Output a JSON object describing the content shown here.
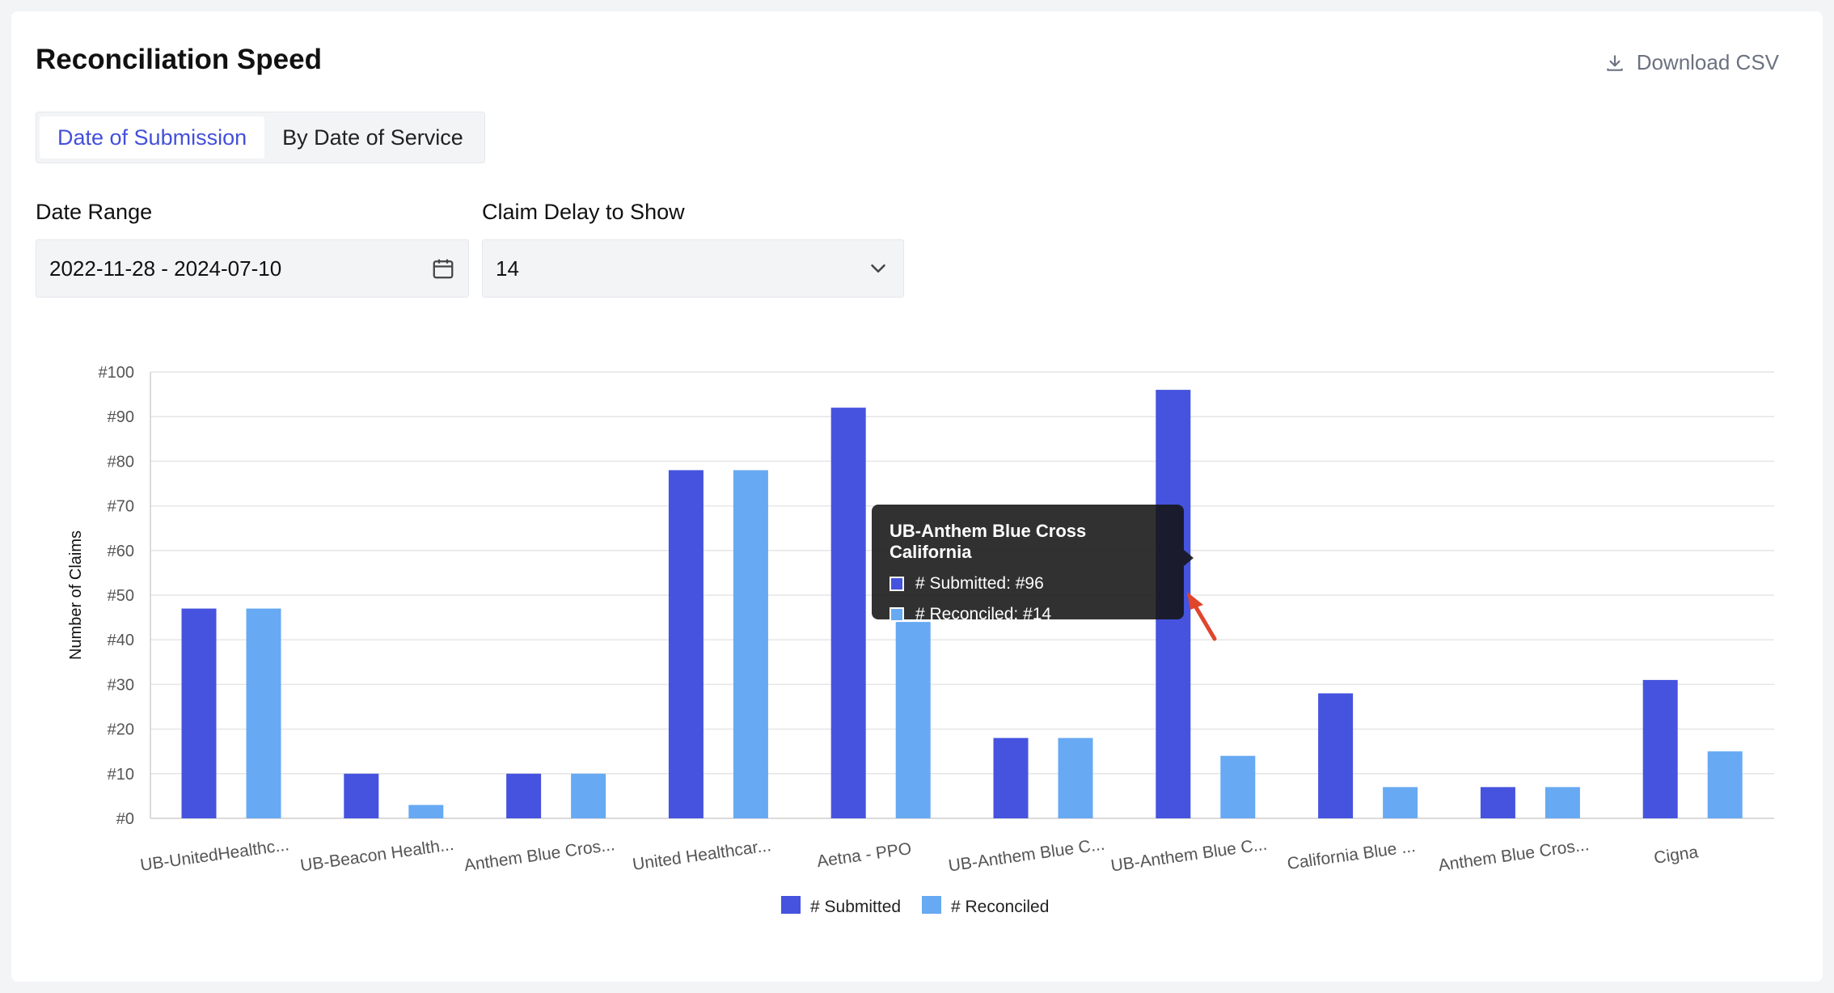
{
  "header": {
    "title": "Reconciliation Speed",
    "download_label": "Download CSV"
  },
  "tabs": [
    {
      "label": "Date of Submission",
      "active": true
    },
    {
      "label": "By Date of Service",
      "active": false
    }
  ],
  "filters": {
    "date_range_label": "Date Range",
    "date_range_value": "2022-11-28 - 2024-07-10",
    "claim_delay_label": "Claim Delay to Show",
    "claim_delay_value": "14"
  },
  "colors": {
    "submitted": "#4553DE",
    "reconciled": "#67A9F2",
    "active_tab": "#4450d9"
  },
  "icons": {
    "download": "download-icon",
    "calendar": "calendar-icon",
    "dropdown": "chevron-down-icon",
    "cursor": "pointer-arrow-icon"
  },
  "tooltip": {
    "title": "UB-Anthem Blue Cross California",
    "submitted": "# Submitted: #96",
    "reconciled": "# Reconciled: #14"
  },
  "chart_data": {
    "type": "bar",
    "ylabel": "Number of Claims",
    "ylim": [
      0,
      100
    ],
    "ytick_prefix": "#",
    "yticks": [
      0,
      10,
      20,
      30,
      40,
      50,
      60,
      70,
      80,
      90,
      100
    ],
    "grid": true,
    "legend_position": "bottom-center",
    "categories": [
      "UB-UnitedHealthc...",
      "UB-Beacon Health...",
      "Anthem Blue Cros...",
      "United Healthcar...",
      "Aetna - PPO",
      "UB-Anthem Blue C...",
      "UB-Anthem Blue C...",
      "California Blue ...",
      "Anthem Blue Cros...",
      "Cigna"
    ],
    "series": [
      {
        "name": "# Submitted",
        "values": [
          47,
          10,
          10,
          78,
          92,
          18,
          96,
          28,
          7,
          31
        ]
      },
      {
        "name": "# Reconciled",
        "values": [
          47,
          3,
          10,
          78,
          44,
          18,
          14,
          7,
          7,
          15
        ]
      }
    ]
  }
}
